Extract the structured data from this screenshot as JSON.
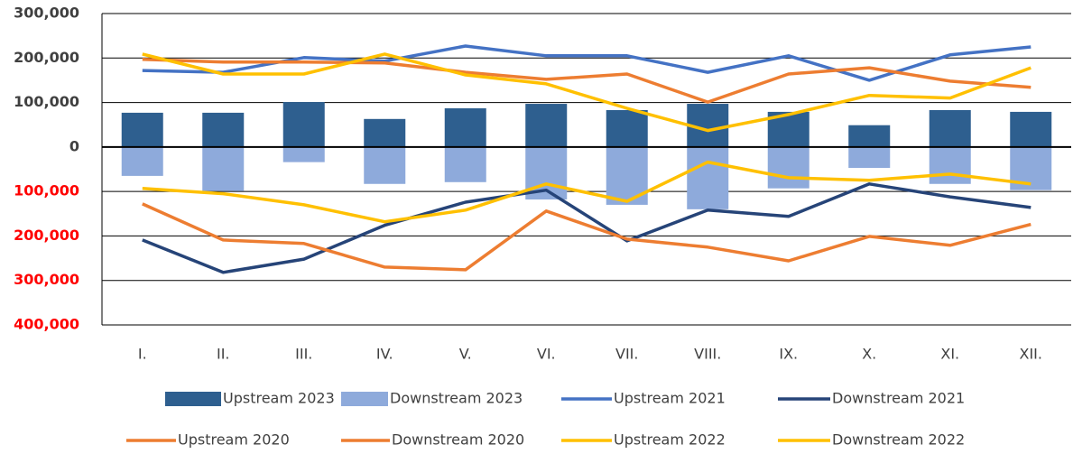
{
  "chart_data": {
    "type": "combo",
    "categories": [
      "I.",
      "II.",
      "III.",
      "IV.",
      "V.",
      "VI.",
      "VII.",
      "VIII.",
      "IX.",
      "X.",
      "XI.",
      "XII."
    ],
    "ylim": [
      -400000,
      300000
    ],
    "yticks": [
      {
        "value": 300000,
        "label": "300,000"
      },
      {
        "value": 200000,
        "label": "200,000"
      },
      {
        "value": 100000,
        "label": "100,000"
      },
      0,
      {
        "value": -100000,
        "label": "100,000"
      },
      {
        "value": -200000,
        "label": "200,000"
      },
      {
        "value": -300000,
        "label": "300,000"
      },
      {
        "value": -400000,
        "label": "400,000"
      }
    ],
    "negative_tick_color": "#ff0000",
    "grid": true,
    "legend": "bottom",
    "series": [
      {
        "name": "Upstream 2023",
        "kind": "bar",
        "color": "#2e5f8f",
        "values": [
          77000,
          77000,
          101000,
          63000,
          87000,
          97000,
          83000,
          97000,
          79000,
          49000,
          83000,
          79000
        ]
      },
      {
        "name": "Downstream 2023",
        "kind": "bar",
        "color": "#8eaadb",
        "values": [
          -65000,
          -99000,
          -34000,
          -83000,
          -79000,
          -118000,
          -130000,
          -140000,
          -93000,
          -47000,
          -83000,
          -97000
        ]
      },
      {
        "name": "Upstream 2021",
        "kind": "line",
        "color": "#4472c4",
        "values": [
          172000,
          168000,
          201000,
          193000,
          227000,
          205000,
          205000,
          168000,
          205000,
          150000,
          207000,
          225000
        ]
      },
      {
        "name": "Downstream 2021",
        "kind": "line",
        "color": "#264478",
        "values": [
          -209000,
          -282000,
          -252000,
          -176000,
          -124000,
          -97000,
          -211000,
          -142000,
          -156000,
          -83000,
          -112000,
          -136000
        ]
      },
      {
        "name": "Upstream 2020",
        "kind": "line",
        "color": "#ed7d31",
        "values": [
          197000,
          191000,
          191000,
          189000,
          168000,
          152000,
          164000,
          101000,
          164000,
          178000,
          148000,
          134000
        ]
      },
      {
        "name": "Downstream 2020",
        "kind": "line",
        "color": "#ed7d31",
        "values": [
          -128000,
          -209000,
          -217000,
          -270000,
          -276000,
          -144000,
          -207000,
          -225000,
          -256000,
          -201000,
          -221000,
          -174000
        ]
      },
      {
        "name": "Upstream 2022",
        "kind": "line",
        "color": "#ffc000",
        "values": [
          209000,
          164000,
          164000,
          209000,
          162000,
          142000,
          87000,
          37000,
          73000,
          116000,
          110000,
          178000
        ]
      },
      {
        "name": "Downstream 2022",
        "kind": "line",
        "color": "#ffc000",
        "values": [
          -93000,
          -105000,
          -130000,
          -168000,
          -142000,
          -83000,
          -122000,
          -34000,
          -69000,
          -75000,
          -61000,
          -83000
        ]
      }
    ]
  }
}
